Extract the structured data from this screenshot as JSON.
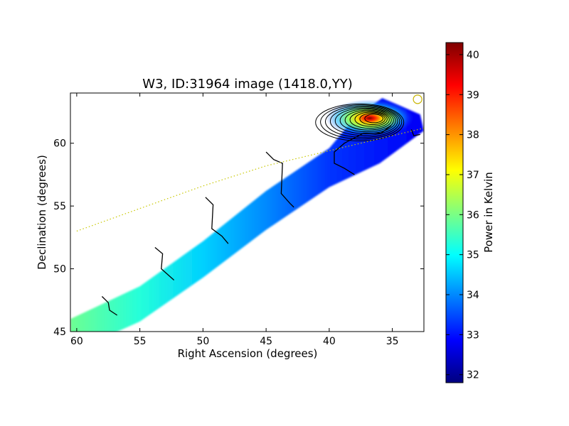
{
  "chart_data": {
    "type": "heatmap",
    "title": "W3, ID:31964 image (1418.0,YY)",
    "xlabel": "Right Ascension (degrees)",
    "ylabel": "Declination (degrees)",
    "xlim": [
      60.5,
      32.5
    ],
    "ylim": [
      45,
      64
    ],
    "x_ticks": [
      60,
      55,
      50,
      45,
      40,
      35
    ],
    "y_ticks": [
      45,
      50,
      55,
      60
    ],
    "colorbar": {
      "label": "Power in Kelvin",
      "range": [
        31.8,
        40.3
      ],
      "ticks": [
        32,
        33,
        34,
        35,
        36,
        37,
        38,
        39,
        40
      ],
      "colormap": "jet"
    },
    "coverage_strip": {
      "edge_points": [
        [
          60.5,
          46.0
        ],
        [
          55.0,
          48.6
        ],
        [
          50.0,
          52.2
        ],
        [
          45.0,
          56.2
        ],
        [
          40.0,
          59.6
        ],
        [
          38.0,
          62.0
        ],
        [
          35.8,
          63.6
        ],
        [
          32.8,
          62.3
        ],
        [
          32.5,
          61.0
        ],
        [
          36.0,
          58.4
        ],
        [
          40.0,
          56.5
        ],
        [
          45.0,
          53.1
        ],
        [
          50.0,
          49.3
        ],
        [
          55.0,
          45.8
        ],
        [
          59.0,
          44.0
        ],
        [
          60.5,
          44.0
        ]
      ],
      "gradient": [
        {
          "ra": 60.5,
          "kelvin": 35.9
        },
        {
          "ra": 55,
          "kelvin": 35.3
        },
        {
          "ra": 50,
          "kelvin": 34.6
        },
        {
          "ra": 45,
          "kelvin": 34.0
        },
        {
          "ra": 40,
          "kelvin": 33.3
        },
        {
          "ra": 33,
          "kelvin": 32.8
        }
      ]
    },
    "source_peak": {
      "ra": 36.8,
      "dec": 62.0,
      "peak_kelvin": 40.2,
      "contour_levels": [
        33.0,
        33.7,
        34.4,
        35.1,
        35.8,
        36.5,
        37.2,
        37.9,
        38.6,
        39.3,
        40.0
      ]
    },
    "contour_lines": [
      [
        [
          58.0,
          47.8
        ],
        [
          57.5,
          47.3
        ],
        [
          57.4,
          46.7
        ],
        [
          56.8,
          46.3
        ]
      ],
      [
        [
          53.8,
          51.7
        ],
        [
          53.2,
          51.2
        ],
        [
          53.3,
          50.0
        ],
        [
          52.3,
          49.1
        ]
      ],
      [
        [
          49.8,
          55.7
        ],
        [
          49.2,
          55.1
        ],
        [
          49.3,
          53.2
        ],
        [
          48.5,
          52.6
        ],
        [
          48.0,
          52.0
        ]
      ],
      [
        [
          45.0,
          59.3
        ],
        [
          44.4,
          58.7
        ],
        [
          43.7,
          58.4
        ],
        [
          43.8,
          56.0
        ],
        [
          43.1,
          55.2
        ],
        [
          42.8,
          54.9
        ]
      ],
      [
        [
          38.0,
          57.5
        ],
        [
          38.8,
          58.0
        ],
        [
          39.6,
          58.4
        ],
        [
          39.6,
          59.3
        ],
        [
          38.8,
          60.0
        ],
        [
          37.3,
          60.8
        ],
        [
          35.9,
          60.8
        ],
        [
          35.1,
          61.4
        ]
      ],
      [
        [
          33.5,
          61.1
        ],
        [
          33.3,
          60.6
        ],
        [
          32.8,
          60.7
        ]
      ]
    ],
    "galactic_plane": {
      "style": "dotted",
      "color": "#c8c800",
      "points": [
        [
          60.0,
          53.0
        ],
        [
          55.0,
          54.8
        ],
        [
          50.0,
          56.6
        ],
        [
          45.0,
          58.2
        ],
        [
          40.0,
          59.4
        ],
        [
          35.0,
          60.6
        ],
        [
          32.5,
          61.2
        ]
      ]
    },
    "beam_marker": {
      "ra": 33.0,
      "dec": 63.5,
      "color": "#c8b400"
    }
  }
}
